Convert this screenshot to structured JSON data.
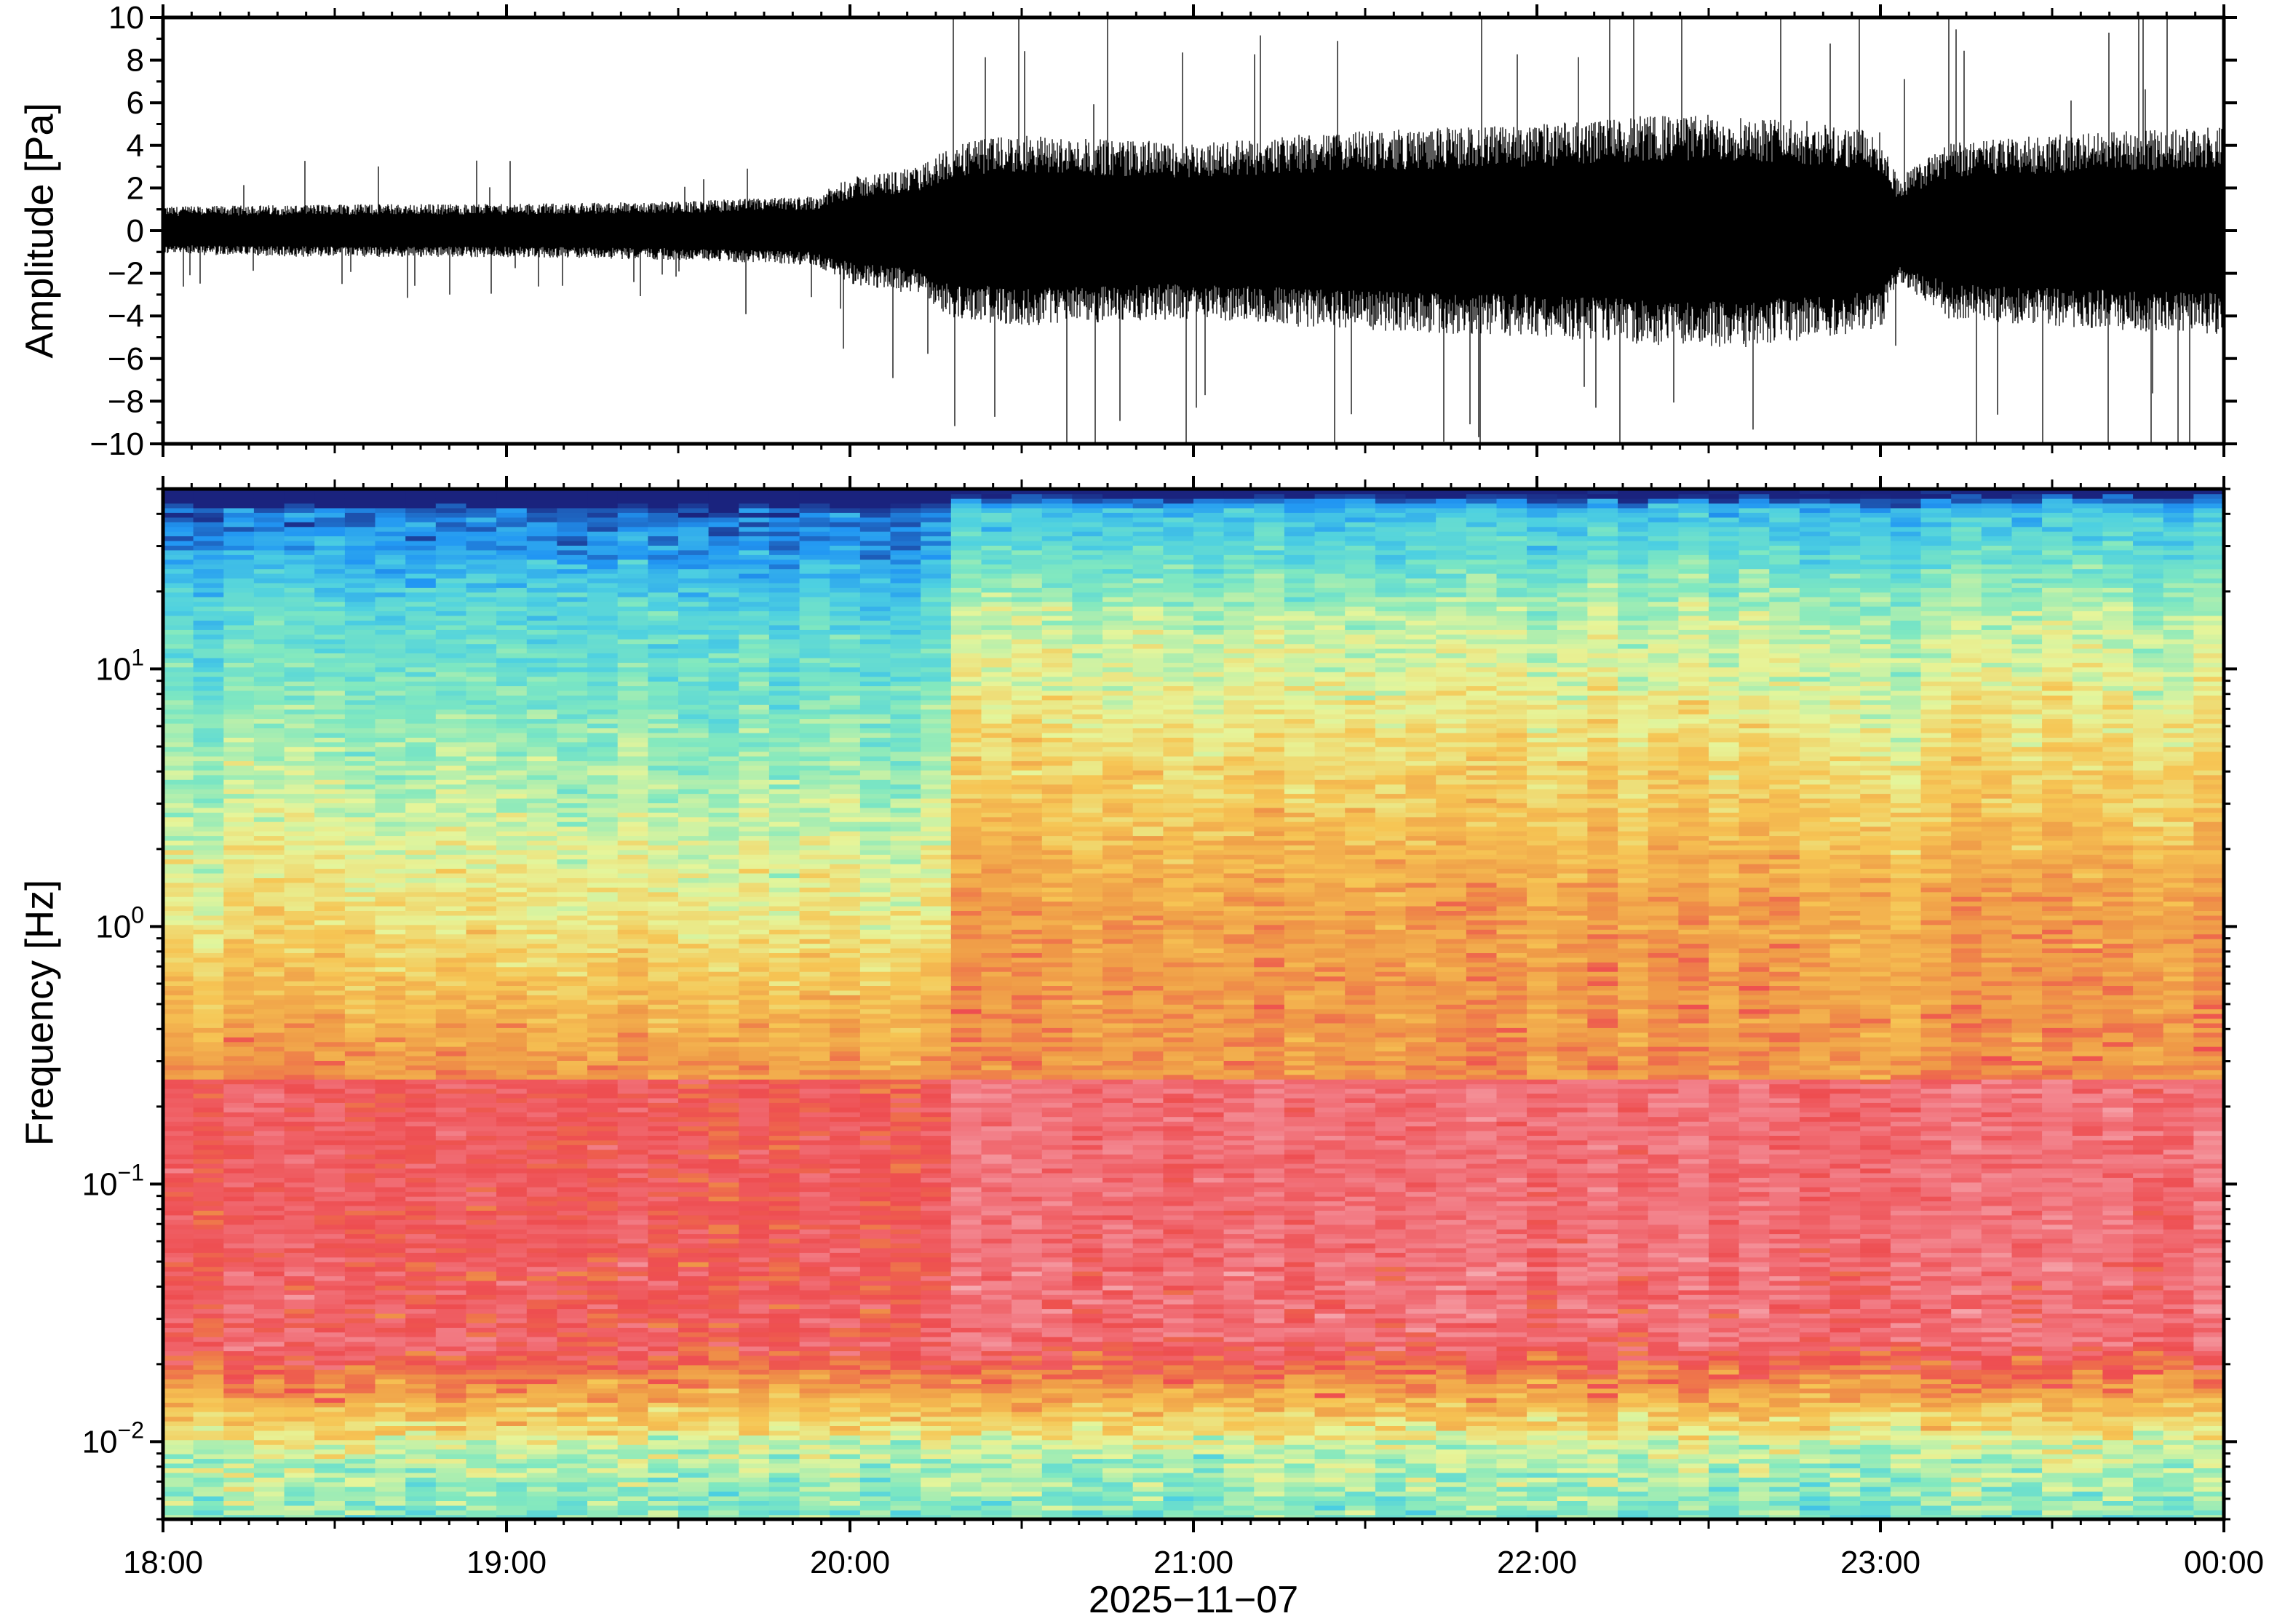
{
  "chart_data": [
    {
      "type": "line",
      "panel": "waveform",
      "ylabel": "Amplitude [Pa]",
      "ylim": [
        -10,
        10
      ],
      "yticks": [
        10,
        8,
        6,
        4,
        2,
        0,
        -2,
        -4,
        -6,
        -8,
        -10
      ],
      "ytick_labels": [
        "10",
        "8",
        "6",
        "4",
        "2",
        "0",
        "−2",
        "−4",
        "−6",
        "−8",
        "−10"
      ],
      "xlim": [
        "18:00",
        "00:00"
      ],
      "envelope": {
        "hours": [
          18.0,
          18.5,
          19.0,
          19.5,
          19.9,
          20.0,
          20.2,
          20.3,
          20.5,
          20.8,
          21.0,
          21.3,
          21.6,
          22.0,
          22.3,
          22.6,
          22.8,
          23.0,
          23.05,
          23.2,
          23.5,
          23.8,
          24.0
        ],
        "amplitude": [
          0.9,
          1.0,
          1.0,
          1.1,
          1.3,
          2.0,
          2.4,
          3.3,
          3.6,
          3.4,
          3.3,
          3.6,
          3.8,
          4.0,
          4.3,
          4.4,
          4.1,
          3.7,
          2.0,
          3.3,
          3.6,
          3.8,
          3.9
        ]
      },
      "grid": false,
      "legend": "none"
    },
    {
      "type": "heatmap",
      "panel": "spectrogram",
      "ylabel": "Frequency [Hz]",
      "yscale": "log",
      "ylim": [
        0.005,
        50
      ],
      "yticks": [
        0.01,
        0.1,
        1,
        10
      ],
      "ytick_labels": [
        {
          "base": "10",
          "exp": "−2"
        },
        {
          "base": "10",
          "exp": "−1"
        },
        {
          "base": "10",
          "exp": "0"
        },
        {
          "base": "10",
          "exp": "1"
        }
      ],
      "xlabel": "2025−11−07",
      "xlim": [
        "18:00",
        "00:00"
      ],
      "xtick_labels": [
        "18:00",
        "19:00",
        "20:00",
        "21:00",
        "22:00",
        "23:00",
        "00:00"
      ],
      "colormap": [
        "#1a237e",
        "#2196f3",
        "#4dd0e1",
        "#80e8c0",
        "#e6f59a",
        "#f6c554",
        "#ef9a47",
        "#ee4d50",
        "#f27c85",
        "#f6a8ae"
      ],
      "grid": false,
      "legend": "none"
    }
  ]
}
